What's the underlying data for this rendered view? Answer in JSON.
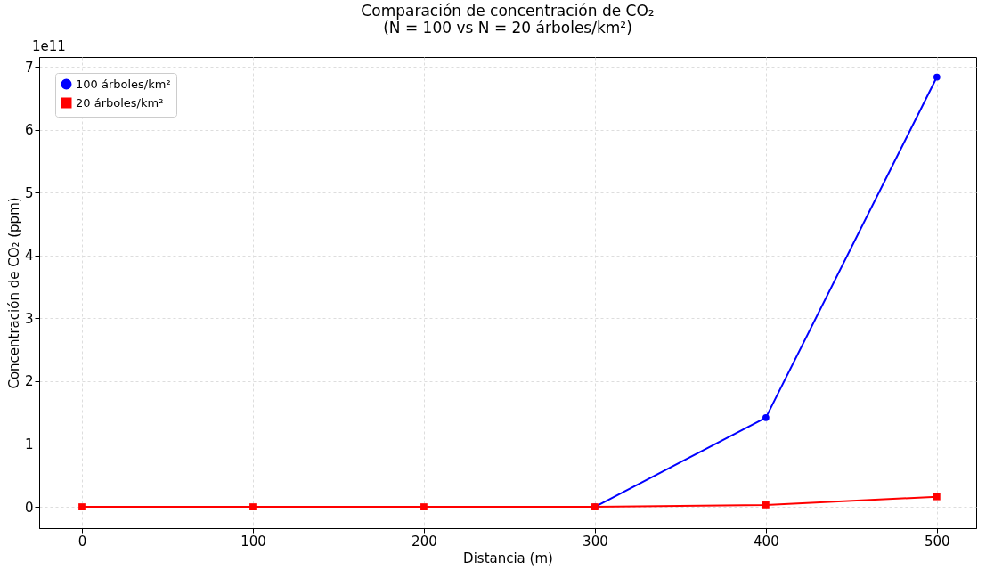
{
  "chart_data": {
    "type": "line",
    "title": [
      "Comparación de concentración de CO₂",
      "(N = 100 vs N = 20 árboles/km²)"
    ],
    "xlabel": "Distancia (m)",
    "ylabel": "Concentración de CO₂ (ppm)",
    "x": [
      0,
      100,
      200,
      300,
      400,
      500
    ],
    "series": [
      {
        "name": "100 árboles/km²",
        "color": "#0000ff",
        "marker": "circle",
        "values": [
          null,
          null,
          null,
          0,
          1.42,
          6.84
        ]
      },
      {
        "name": "20 árboles/km²",
        "color": "#ff0000",
        "marker": "square",
        "values": [
          0,
          0,
          0,
          0,
          0.03,
          0.16
        ]
      }
    ],
    "xlim": [
      -25,
      523
    ],
    "xticks": [
      0,
      100,
      200,
      300,
      400,
      500
    ],
    "ylim": [
      -0.34,
      7.16
    ],
    "yticks": [
      0,
      1,
      2,
      3,
      4,
      5,
      6,
      7
    ],
    "annotations": [
      "1e11"
    ],
    "grid": true,
    "legend": "top left",
    "line_style": "solid"
  }
}
